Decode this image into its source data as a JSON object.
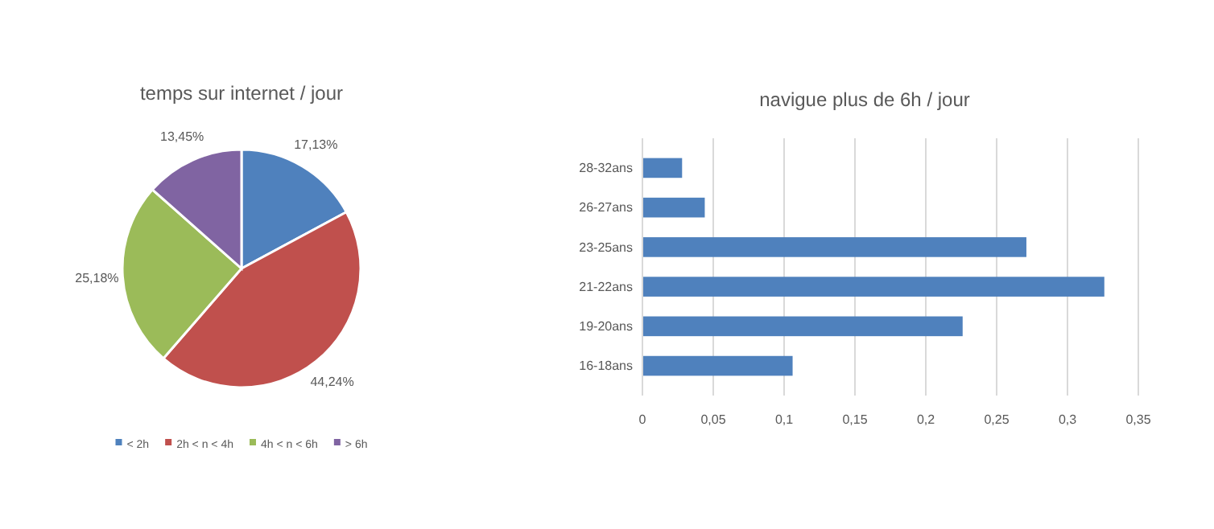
{
  "chart_data": [
    {
      "type": "pie",
      "title": "temps sur internet / jour",
      "categories": [
        "< 2h",
        "2h < n < 4h",
        "4h < n < 6h",
        "> 6h"
      ],
      "values": [
        17.13,
        44.24,
        25.18,
        13.45
      ],
      "colors": [
        "#4f81bd",
        "#c0504d",
        "#9bbb59",
        "#8064a2"
      ],
      "value_labels": [
        "17,13%",
        "44,24%",
        "25,18%",
        "13,45%"
      ],
      "legend": "bottom"
    },
    {
      "type": "bar",
      "orientation": "horizontal",
      "title": "navigue plus de 6h / jour",
      "categories": [
        "28-32ans",
        "26-27ans",
        "23-25ans",
        "21-22ans",
        "19-20ans",
        "16-18ans"
      ],
      "values": [
        0.028,
        0.044,
        0.271,
        0.326,
        0.226,
        0.106
      ],
      "color": "#4f81bd",
      "xlim": [
        0,
        0.35
      ],
      "xticks": [
        {
          "value": 0,
          "label": "0"
        },
        {
          "value": 0.05,
          "label": "0,05"
        },
        {
          "value": 0.1,
          "label": "0,1"
        },
        {
          "value": 0.15,
          "label": "0,15"
        },
        {
          "value": 0.2,
          "label": "0,2"
        },
        {
          "value": 0.25,
          "label": "0,25"
        },
        {
          "value": 0.3,
          "label": "0,3"
        },
        {
          "value": 0.35,
          "label": "0,35"
        }
      ],
      "grid": "x"
    }
  ]
}
